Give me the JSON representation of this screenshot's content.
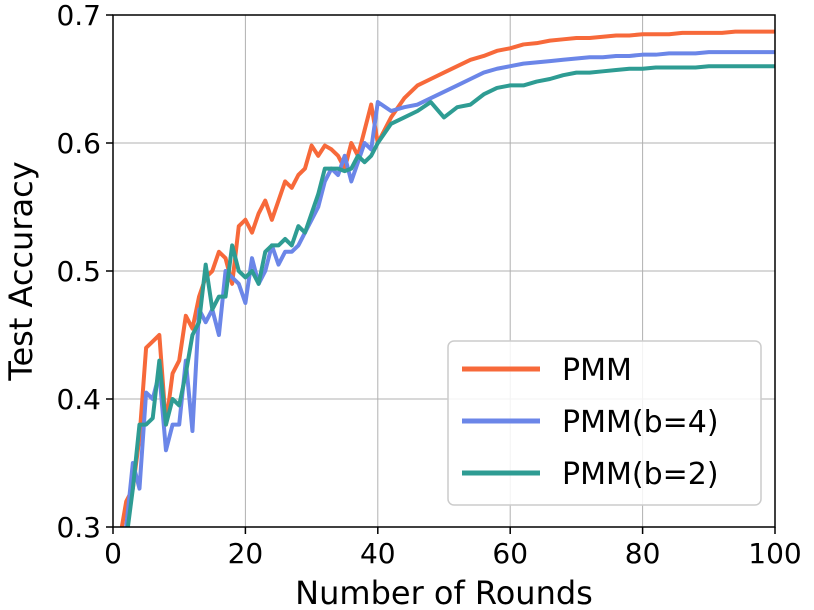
{
  "chart_data": {
    "type": "line",
    "title": "",
    "xlabel": "Number of Rounds",
    "ylabel": "Test Accuracy",
    "xlim": [
      0,
      100
    ],
    "ylim": [
      0.3,
      0.7
    ],
    "xticks": [
      0,
      20,
      40,
      60,
      80,
      100
    ],
    "yticks": [
      0.3,
      0.4,
      0.5,
      0.6,
      0.7
    ],
    "xtick_labels": [
      "0",
      "20",
      "40",
      "60",
      "80",
      "100"
    ],
    "ytick_labels": [
      "0.3",
      "0.4",
      "0.5",
      "0.6",
      "0.7"
    ],
    "grid": true,
    "legend_position": "lower-right",
    "series": [
      {
        "name": "PMM",
        "color": "#f7693a",
        "x": [
          1,
          2,
          3,
          4,
          5,
          6,
          7,
          8,
          9,
          10,
          11,
          12,
          13,
          14,
          15,
          16,
          17,
          18,
          19,
          20,
          21,
          22,
          23,
          24,
          25,
          26,
          27,
          28,
          29,
          30,
          31,
          32,
          33,
          34,
          35,
          36,
          37,
          38,
          39,
          40,
          42,
          44,
          46,
          48,
          50,
          52,
          54,
          56,
          58,
          60,
          62,
          64,
          66,
          68,
          70,
          72,
          74,
          76,
          78,
          80,
          82,
          84,
          86,
          88,
          90,
          92,
          94,
          96,
          98,
          100
        ],
        "y": [
          0.29,
          0.32,
          0.33,
          0.37,
          0.44,
          0.445,
          0.45,
          0.38,
          0.42,
          0.43,
          0.465,
          0.455,
          0.48,
          0.495,
          0.5,
          0.515,
          0.51,
          0.49,
          0.535,
          0.54,
          0.53,
          0.545,
          0.555,
          0.54,
          0.555,
          0.57,
          0.565,
          0.575,
          0.58,
          0.598,
          0.59,
          0.598,
          0.595,
          0.59,
          0.58,
          0.6,
          0.59,
          0.61,
          0.63,
          0.6,
          0.62,
          0.635,
          0.645,
          0.65,
          0.655,
          0.66,
          0.665,
          0.668,
          0.672,
          0.674,
          0.677,
          0.678,
          0.68,
          0.681,
          0.682,
          0.682,
          0.683,
          0.684,
          0.684,
          0.685,
          0.685,
          0.685,
          0.686,
          0.686,
          0.686,
          0.686,
          0.687,
          0.687,
          0.687,
          0.687
        ]
      },
      {
        "name": "PMM(b=4)",
        "color": "#6b86e8",
        "x": [
          1,
          2,
          3,
          4,
          5,
          6,
          7,
          8,
          9,
          10,
          11,
          12,
          13,
          14,
          15,
          16,
          17,
          18,
          19,
          20,
          21,
          22,
          23,
          24,
          25,
          26,
          27,
          28,
          29,
          30,
          31,
          32,
          33,
          34,
          35,
          36,
          37,
          38,
          39,
          40,
          42,
          44,
          46,
          48,
          50,
          52,
          54,
          56,
          58,
          60,
          62,
          64,
          66,
          68,
          70,
          72,
          74,
          76,
          78,
          80,
          82,
          84,
          86,
          88,
          90,
          92,
          94,
          96,
          98,
          100
        ],
        "y": [
          0.28,
          0.3,
          0.35,
          0.33,
          0.405,
          0.4,
          0.42,
          0.36,
          0.38,
          0.38,
          0.43,
          0.375,
          0.47,
          0.46,
          0.47,
          0.45,
          0.5,
          0.495,
          0.49,
          0.475,
          0.51,
          0.49,
          0.5,
          0.52,
          0.505,
          0.515,
          0.515,
          0.52,
          0.53,
          0.54,
          0.55,
          0.57,
          0.58,
          0.575,
          0.59,
          0.57,
          0.585,
          0.6,
          0.595,
          0.632,
          0.625,
          0.628,
          0.63,
          0.635,
          0.64,
          0.645,
          0.65,
          0.655,
          0.658,
          0.66,
          0.662,
          0.663,
          0.664,
          0.665,
          0.666,
          0.667,
          0.667,
          0.668,
          0.668,
          0.669,
          0.669,
          0.67,
          0.67,
          0.67,
          0.671,
          0.671,
          0.671,
          0.671,
          0.671,
          0.671
        ]
      },
      {
        "name": "PMM(b=2)",
        "color": "#2e9c93",
        "x": [
          1,
          2,
          3,
          4,
          5,
          6,
          7,
          8,
          9,
          10,
          11,
          12,
          13,
          14,
          15,
          16,
          17,
          18,
          19,
          20,
          21,
          22,
          23,
          24,
          25,
          26,
          27,
          28,
          29,
          30,
          31,
          32,
          33,
          34,
          35,
          36,
          37,
          38,
          39,
          40,
          42,
          44,
          46,
          48,
          50,
          52,
          54,
          56,
          58,
          60,
          62,
          64,
          66,
          68,
          70,
          72,
          74,
          76,
          78,
          80,
          82,
          84,
          86,
          88,
          90,
          92,
          94,
          96,
          98,
          100
        ],
        "y": [
          0.28,
          0.29,
          0.33,
          0.38,
          0.38,
          0.385,
          0.43,
          0.38,
          0.4,
          0.395,
          0.42,
          0.45,
          0.46,
          0.505,
          0.47,
          0.48,
          0.48,
          0.52,
          0.5,
          0.495,
          0.5,
          0.49,
          0.515,
          0.52,
          0.52,
          0.525,
          0.52,
          0.535,
          0.53,
          0.545,
          0.56,
          0.58,
          0.58,
          0.58,
          0.578,
          0.58,
          0.59,
          0.585,
          0.59,
          0.6,
          0.615,
          0.62,
          0.625,
          0.632,
          0.62,
          0.628,
          0.63,
          0.638,
          0.643,
          0.645,
          0.645,
          0.648,
          0.65,
          0.653,
          0.655,
          0.655,
          0.656,
          0.657,
          0.658,
          0.658,
          0.659,
          0.659,
          0.659,
          0.659,
          0.66,
          0.66,
          0.66,
          0.66,
          0.66,
          0.66
        ]
      }
    ]
  }
}
